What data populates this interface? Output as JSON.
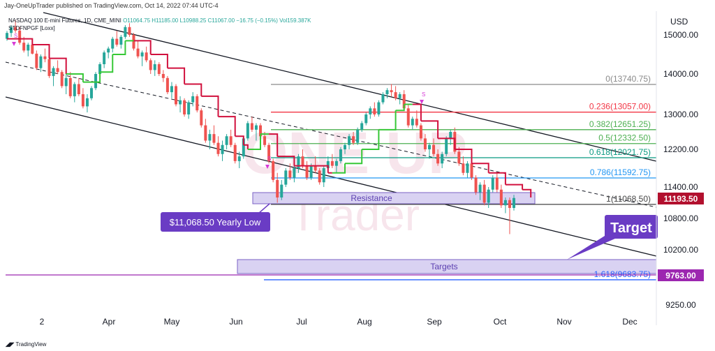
{
  "header": {
    "publish_line": "Jay-OneUpTrader published on TradingView.com, Oct 14, 2022 07:44 UTC-4",
    "symbol_line": "NASDAQ 100 E-mini Futures, 1D, CME_MINI",
    "ohlc": "O11064.75  H11185.00  L10988.25  C11067.00  −16.75 (−0.15%)  Vol159.387K",
    "indicator_line": "STDFNPGF [Loxx]"
  },
  "footer": {
    "brand": "TradingView"
  },
  "watermark": {
    "top": "ONE UP",
    "bottom": "Trader"
  },
  "colors": {
    "candle_up": "#26a69a",
    "candle_down": "#ef5350",
    "trend_red": "#d1103d",
    "trend_green": "#37c837",
    "fib_red": "#f23645",
    "fib_green": "#4caf50",
    "fib_blue": "#2962ff",
    "zone_fill": "#d9d2f2",
    "zone_border": "#7b61c6",
    "callout": "#6a3cc4",
    "price_tag_bg": "#b2102e",
    "target_tag_bg": "#9c27b0"
  },
  "chart_data": {
    "type": "candlestick",
    "currency": "USD",
    "price_axis": [
      15000,
      14000,
      13000,
      12200,
      11400,
      10800,
      10200,
      9250
    ],
    "price_axis_labels": [
      "15000.00",
      "14000.00",
      "13000.00",
      "12200.00",
      "11400.00",
      "10800.00",
      "10200.00",
      "9250.00"
    ],
    "time_axis": [
      "2",
      "Apr",
      "May",
      "Jun",
      "Jul",
      "Aug",
      "Sep",
      "Oct",
      "Nov",
      "Dec"
    ],
    "current_price": "11193.50",
    "target_price": "9763.00",
    "fib_levels": [
      {
        "ratio": "0",
        "value": 13740.75,
        "label": "0(13740.75)",
        "color": "#8a8a8a"
      },
      {
        "ratio": "0.236",
        "value": 13057.0,
        "label": "0.236(13057.00)",
        "color": "#f23645"
      },
      {
        "ratio": "0.382",
        "value": 12651.25,
        "label": "0.382(12651.25)",
        "color": "#4caf50"
      },
      {
        "ratio": "0.5",
        "value": 12332.5,
        "label": "0.5(12332.50)",
        "color": "#4caf50"
      },
      {
        "ratio": "0.618",
        "value": 12021.75,
        "label": "0.618(12021.75)",
        "color": "#089981"
      },
      {
        "ratio": "0.786",
        "value": 11592.75,
        "label": "0.786(11592.75)",
        "color": "#2196f3"
      },
      {
        "ratio": "1",
        "value": 11068.5,
        "label": "1(11068.50)",
        "color": "#444444"
      },
      {
        "ratio": "1.618",
        "value": 9683.75,
        "label": "1.618(9683.75)",
        "color": "#2962ff"
      }
    ],
    "annotations": {
      "resistance_label": "Resistance",
      "targets_label": "Targets",
      "yearly_low_label": "$11,068.50 Yearly Low",
      "target_callout": "Target"
    },
    "candles": [
      [
        14900,
        15100,
        14850,
        15050
      ],
      [
        15050,
        15250,
        14950,
        15200
      ],
      [
        15200,
        15380,
        15050,
        15110
      ],
      [
        15110,
        15200,
        14750,
        14800
      ],
      [
        14800,
        14950,
        14550,
        14600
      ],
      [
        14600,
        14800,
        14450,
        14750
      ],
      [
        14750,
        14900,
        14500,
        14520
      ],
      [
        14520,
        14600,
        14100,
        14150
      ],
      [
        14150,
        14500,
        14050,
        14450
      ],
      [
        14450,
        14650,
        14300,
        14380
      ],
      [
        14380,
        14450,
        13900,
        13950
      ],
      [
        13950,
        14200,
        13700,
        14150
      ],
      [
        14150,
        14350,
        14000,
        14050
      ],
      [
        14050,
        14100,
        13650,
        13700
      ],
      [
        13700,
        14000,
        13500,
        13900
      ],
      [
        13900,
        14050,
        13400,
        13450
      ],
      [
        13450,
        13800,
        13300,
        13750
      ],
      [
        13750,
        13900,
        13450,
        13500
      ],
      [
        13500,
        13650,
        13150,
        13200
      ],
      [
        13200,
        13500,
        13050,
        13400
      ],
      [
        13400,
        13700,
        13350,
        13650
      ],
      [
        13650,
        14050,
        13600,
        14000
      ],
      [
        14000,
        14300,
        13900,
        14250
      ],
      [
        14250,
        14600,
        14150,
        14550
      ],
      [
        14550,
        14700,
        14400,
        14650
      ],
      [
        14650,
        14950,
        14550,
        14900
      ],
      [
        14900,
        15100,
        14700,
        14750
      ],
      [
        14750,
        15000,
        14650,
        14950
      ],
      [
        14950,
        15250,
        14900,
        15200
      ],
      [
        15200,
        15300,
        14950,
        15000
      ],
      [
        15000,
        15050,
        14600,
        14650
      ],
      [
        14650,
        14850,
        14400,
        14450
      ],
      [
        14450,
        14600,
        14200,
        14550
      ],
      [
        14550,
        14700,
        14300,
        14350
      ],
      [
        14350,
        14400,
        14000,
        14100
      ],
      [
        14100,
        14350,
        13950,
        14250
      ],
      [
        14250,
        14300,
        13950,
        14000
      ],
      [
        14000,
        14100,
        13800,
        13900
      ],
      [
        13900,
        13950,
        13500,
        13550
      ],
      [
        13550,
        13800,
        13400,
        13700
      ],
      [
        13700,
        13750,
        13200,
        13250
      ],
      [
        13250,
        13450,
        13050,
        13350
      ],
      [
        13350,
        13400,
        12950,
        13000
      ],
      [
        13000,
        13350,
        12900,
        13300
      ],
      [
        13300,
        13550,
        13200,
        13450
      ],
      [
        13450,
        13500,
        13050,
        13100
      ],
      [
        13100,
        13150,
        12700,
        12750
      ],
      [
        12750,
        12900,
        12350,
        12400
      ],
      [
        12400,
        12650,
        12200,
        12550
      ],
      [
        12550,
        12750,
        12300,
        12350
      ],
      [
        12350,
        12500,
        12050,
        12100
      ],
      [
        12100,
        12400,
        11950,
        12300
      ],
      [
        12300,
        12550,
        12200,
        12500
      ],
      [
        12500,
        12650,
        12250,
        12300
      ],
      [
        12300,
        12350,
        11900,
        11950
      ],
      [
        11950,
        12150,
        11800,
        12050
      ],
      [
        12050,
        12500,
        12000,
        12450
      ],
      [
        12450,
        12850,
        12400,
        12800
      ],
      [
        12800,
        12950,
        12600,
        12650
      ],
      [
        12650,
        12800,
        12400,
        12750
      ],
      [
        12750,
        12800,
        12450,
        12500
      ],
      [
        12500,
        12600,
        12250,
        12300
      ],
      [
        12300,
        12350,
        11900,
        11950
      ],
      [
        11950,
        12000,
        11500,
        11550
      ],
      [
        11550,
        11700,
        11100,
        11200
      ],
      [
        11200,
        11550,
        11150,
        11450
      ],
      [
        11450,
        11800,
        11400,
        11750
      ],
      [
        11750,
        11900,
        11550,
        11600
      ],
      [
        11600,
        11850,
        11500,
        11800
      ],
      [
        11800,
        12100,
        11700,
        12050
      ],
      [
        12050,
        12200,
        11800,
        11850
      ],
      [
        11850,
        11950,
        11550,
        11600
      ],
      [
        11600,
        11900,
        11550,
        11850
      ],
      [
        11850,
        12050,
        11700,
        11750
      ],
      [
        11750,
        11800,
        11450,
        11500
      ],
      [
        11500,
        11850,
        11400,
        11800
      ],
      [
        11800,
        12050,
        11750,
        11950
      ],
      [
        11950,
        12100,
        11800,
        11850
      ],
      [
        11850,
        12000,
        11700,
        11950
      ],
      [
        11950,
        12250,
        11900,
        12200
      ],
      [
        12200,
        12350,
        12100,
        12300
      ],
      [
        12300,
        12550,
        12200,
        12500
      ],
      [
        12500,
        12600,
        12300,
        12350
      ],
      [
        12350,
        12700,
        12300,
        12650
      ],
      [
        12650,
        12850,
        12600,
        12800
      ],
      [
        12800,
        13050,
        12750,
        13000
      ],
      [
        13000,
        13200,
        12900,
        13150
      ],
      [
        13150,
        13300,
        12950,
        13000
      ],
      [
        13000,
        13350,
        12950,
        13300
      ],
      [
        13300,
        13550,
        13250,
        13500
      ],
      [
        13500,
        13650,
        13400,
        13600
      ],
      [
        13600,
        13750,
        13450,
        13550
      ],
      [
        13550,
        13700,
        13350,
        13400
      ],
      [
        13400,
        13550,
        13250,
        13500
      ],
      [
        13500,
        13600,
        13100,
        13150
      ],
      [
        13150,
        13250,
        12700,
        12750
      ],
      [
        12750,
        12950,
        12650,
        12900
      ],
      [
        12900,
        13100,
        12700,
        12750
      ],
      [
        12750,
        12800,
        12400,
        12450
      ],
      [
        12450,
        12550,
        12150,
        12200
      ],
      [
        12200,
        12350,
        12000,
        12300
      ],
      [
        12300,
        12450,
        12050,
        12100
      ],
      [
        12100,
        12200,
        11850,
        11900
      ],
      [
        11900,
        12150,
        11800,
        12100
      ],
      [
        12100,
        12500,
        12050,
        12450
      ],
      [
        12450,
        12650,
        12300,
        12600
      ],
      [
        12600,
        12700,
        12100,
        12150
      ],
      [
        12150,
        12250,
        11850,
        11900
      ],
      [
        11900,
        12050,
        11650,
        11700
      ],
      [
        11700,
        11950,
        11600,
        11900
      ],
      [
        11900,
        12000,
        11550,
        11600
      ],
      [
        11600,
        11650,
        11250,
        11300
      ],
      [
        11300,
        11500,
        11150,
        11450
      ],
      [
        11450,
        11550,
        11050,
        11100
      ],
      [
        11100,
        11400,
        11000,
        11350
      ],
      [
        11350,
        11650,
        11300,
        11600
      ],
      [
        11600,
        11700,
        11300,
        11350
      ],
      [
        11350,
        11450,
        11000,
        11050
      ],
      [
        11050,
        11200,
        10900,
        11150
      ],
      [
        11150,
        11200,
        10500,
        11000
      ],
      [
        11000,
        11250,
        10950,
        11190
      ]
    ],
    "trend_line": [
      [
        0,
        14900,
        "r"
      ],
      [
        6,
        14750,
        "r"
      ],
      [
        10,
        14400,
        "r"
      ],
      [
        14,
        14000,
        "g"
      ],
      [
        18,
        13800,
        "g"
      ],
      [
        22,
        14050,
        "g"
      ],
      [
        25,
        14500,
        "g"
      ],
      [
        28,
        14850,
        "g"
      ],
      [
        30,
        14850,
        "r"
      ],
      [
        34,
        14500,
        "r"
      ],
      [
        38,
        14150,
        "r"
      ],
      [
        42,
        13750,
        "r"
      ],
      [
        46,
        13450,
        "r"
      ],
      [
        50,
        12950,
        "r"
      ],
      [
        54,
        12500,
        "r"
      ],
      [
        56,
        12300,
        "r"
      ],
      [
        57,
        12200,
        "g"
      ],
      [
        60,
        12550,
        "g"
      ],
      [
        62,
        12550,
        "r"
      ],
      [
        64,
        12050,
        "r"
      ],
      [
        68,
        11850,
        "r"
      ],
      [
        72,
        11850,
        "r"
      ],
      [
        76,
        11700,
        "r"
      ],
      [
        77,
        11700,
        "g"
      ],
      [
        80,
        11900,
        "g"
      ],
      [
        84,
        12200,
        "g"
      ],
      [
        88,
        12650,
        "g"
      ],
      [
        92,
        13100,
        "g"
      ],
      [
        94,
        13250,
        "g"
      ],
      [
        96,
        13250,
        "r"
      ],
      [
        98,
        12850,
        "r"
      ],
      [
        102,
        12450,
        "r"
      ],
      [
        106,
        12200,
        "r"
      ],
      [
        110,
        11900,
        "r"
      ],
      [
        114,
        11700,
        "r"
      ],
      [
        118,
        11450,
        "r"
      ],
      [
        122,
        11350,
        "r"
      ],
      [
        124,
        11200,
        "r"
      ]
    ]
  }
}
